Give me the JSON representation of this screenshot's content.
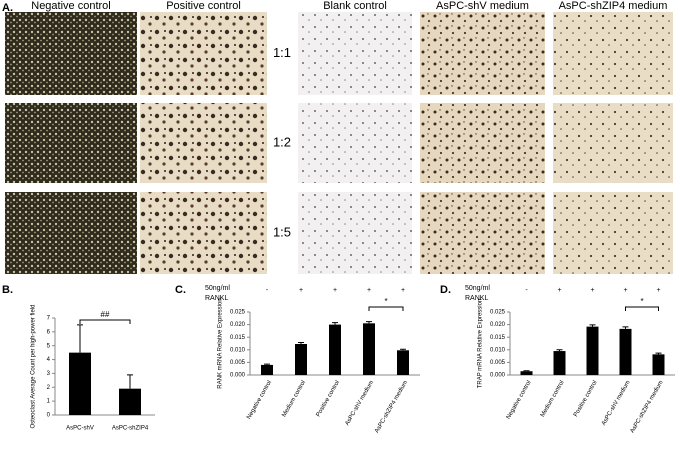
{
  "panel_a": {
    "label": "A.",
    "columns": [
      "Negative control",
      "Positive control",
      "Blank control",
      "AsPC-shV medium",
      "AsPC-shZIP4 medium"
    ],
    "ratios": [
      "1:1",
      "1:2",
      "1:5"
    ]
  },
  "chart_data": [
    {
      "type": "bar",
      "panel_label": "B.",
      "y_label": "Osteoclast Average Count per high-power field",
      "categories": [
        "AsPC-shV",
        "AsPC-shZIP4"
      ],
      "values": [
        4.5,
        1.9
      ],
      "errors": [
        2.0,
        1.0
      ],
      "color": "#000000",
      "ylim": [
        0,
        7
      ],
      "yticks": [
        0,
        1,
        2,
        3,
        4,
        5,
        6,
        7
      ],
      "significance_label": "##"
    },
    {
      "type": "bar",
      "panel_label": "C.",
      "y_label": "RANK mRNA Relative Expression",
      "treatment_label": [
        "50ng/ml",
        "RANKL"
      ],
      "treatment": [
        "-",
        "+",
        "+",
        "+",
        "+"
      ],
      "categories": [
        "Negative control",
        "Medium control",
        "Positive control",
        "AsPC-shV medium",
        "AsPC-shZIP4 medium"
      ],
      "values": [
        0.004,
        0.0123,
        0.02,
        0.0205,
        0.0098
      ],
      "errors": [
        0.0003,
        0.0006,
        0.0008,
        0.0007,
        0.0004
      ],
      "color": "#000000",
      "ylim": [
        0,
        0.025
      ],
      "yticks": [
        {
          "value": 0,
          "label": "0.000"
        },
        {
          "value": 0.005,
          "label": "0.005"
        },
        {
          "value": 0.01,
          "label": "0.010"
        },
        {
          "value": 0.015,
          "label": "0.015"
        },
        {
          "value": 0.02,
          "label": "0.020"
        },
        {
          "value": 0.025,
          "label": "0.025"
        }
      ],
      "significance_label": "*"
    },
    {
      "type": "bar",
      "panel_label": "D.",
      "y_label": "TRAP mRNA Relative Expression",
      "treatment_label": [
        "50ng/ml",
        "RANKL"
      ],
      "treatment": [
        "-",
        "+",
        "+",
        "+",
        "+"
      ],
      "categories": [
        "Negative control",
        "Medium control",
        "Positive control",
        "AsPC-shV medium",
        "AsPC-shZIP4 medium"
      ],
      "values": [
        0.0015,
        0.0095,
        0.0192,
        0.0183,
        0.0082
      ],
      "errors": [
        0.0002,
        0.0005,
        0.0007,
        0.0008,
        0.0005
      ],
      "color": "#000000",
      "ylim": [
        0,
        0.025
      ],
      "yticks": [
        {
          "value": 0,
          "label": "0.000"
        },
        {
          "value": 0.005,
          "label": "0.005"
        },
        {
          "value": 0.01,
          "label": "0.010"
        },
        {
          "value": 0.015,
          "label": "0.015"
        },
        {
          "value": 0.02,
          "label": "0.020"
        },
        {
          "value": 0.025,
          "label": "0.025"
        }
      ],
      "significance_label": "*"
    }
  ]
}
